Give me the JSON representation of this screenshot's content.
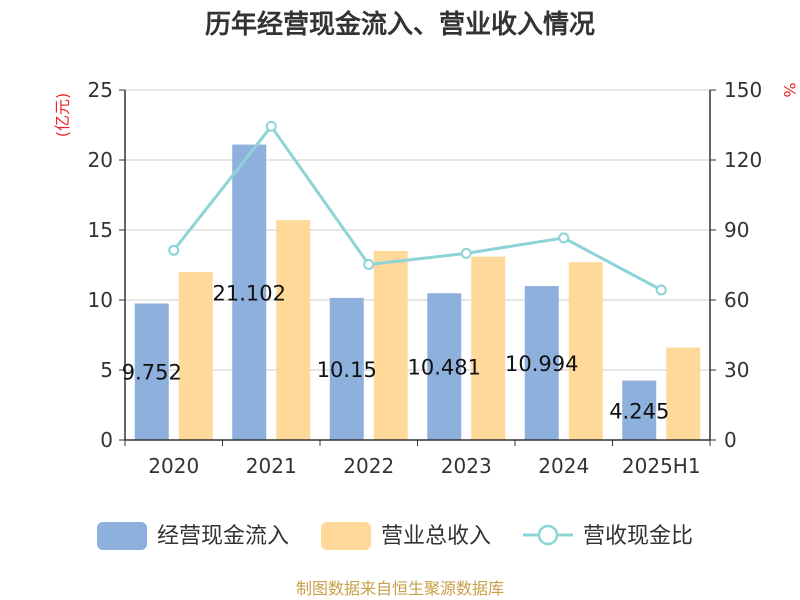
{
  "chart_data": {
    "type": "bar",
    "title": "历年经营现金流入、营业收入情况",
    "categories": [
      "2020",
      "2021",
      "2022",
      "2023",
      "2024",
      "2025H1"
    ],
    "y_left": {
      "unit": "(亿元)",
      "ylim": [
        0,
        25
      ],
      "ticks": [
        0,
        5,
        10,
        15,
        20,
        25
      ]
    },
    "y_right": {
      "unit": "%",
      "ylim": [
        0,
        150
      ],
      "ticks": [
        0,
        30,
        60,
        90,
        120,
        150
      ]
    },
    "grid": true,
    "legend_position": "bottom",
    "series": [
      {
        "name": "经营现金流入",
        "kind": "bar",
        "axis": "left",
        "color": "#8eb0dc",
        "values": [
          9.752,
          21.102,
          10.15,
          10.481,
          10.994,
          4.245
        ],
        "labels": [
          "9.752",
          "21.102",
          "10.15",
          "10.481",
          "10.994",
          "4.245"
        ]
      },
      {
        "name": "营业总收入",
        "kind": "bar",
        "axis": "left",
        "color": "#fed99a",
        "values": [
          12.0,
          15.7,
          13.5,
          13.1,
          12.7,
          6.6
        ]
      },
      {
        "name": "营收现金比",
        "kind": "line",
        "axis": "right",
        "color": "#8dd4d6",
        "values": [
          81.3,
          134.4,
          75.2,
          80.0,
          86.6,
          64.3
        ]
      }
    ],
    "source": "制图数据来自恒生聚源数据库"
  }
}
